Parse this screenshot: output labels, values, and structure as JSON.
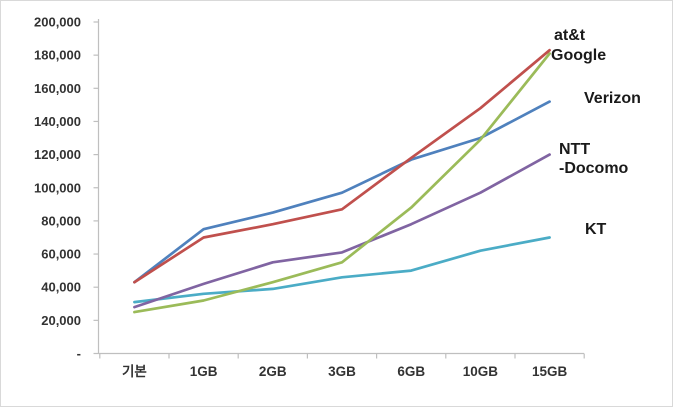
{
  "chart_data": {
    "type": "line",
    "title": "",
    "xlabel": "",
    "ylabel": "",
    "categories": [
      "기본",
      "1GB",
      "2GB",
      "3GB",
      "6GB",
      "10GB",
      "15GB"
    ],
    "series": [
      {
        "name": "at&t",
        "color": "#C0504D",
        "values": [
          43000,
          70000,
          78000,
          87000,
          118000,
          148000,
          183000
        ]
      },
      {
        "name": "Google",
        "color": "#9BBB59",
        "values": [
          25000,
          32000,
          43000,
          55000,
          88000,
          129000,
          181000
        ]
      },
      {
        "name": "Verizon",
        "color": "#4F81BD",
        "values": [
          43000,
          75000,
          85000,
          97000,
          117000,
          130000,
          152000
        ]
      },
      {
        "name": "NTT-Docomo",
        "color": "#8064A2",
        "values": [
          28000,
          42000,
          55000,
          61000,
          78000,
          97000,
          120000
        ]
      },
      {
        "name": "KT",
        "color": "#4BACC6",
        "values": [
          31000,
          36000,
          39000,
          46000,
          50000,
          62000,
          70000
        ]
      }
    ],
    "ylim": [
      0,
      200000
    ],
    "ytick_step": 20000,
    "ytick_labels": [
      "-",
      "20,000",
      "40,000",
      "60,000",
      "80,000",
      "100,000",
      "120,000",
      "140,000",
      "160,000",
      "180,000",
      "200,000"
    ],
    "grid": false,
    "legend_position": "inline-right-of-lines"
  },
  "annotations": {
    "att": "at&t",
    "google": "Google",
    "verizon": "Verizon",
    "ntt_line1": "NTT",
    "ntt_line2": "-Docomo",
    "kt": "KT"
  },
  "colors": {
    "axis": "#BFBFBF",
    "axis_text": "#333333",
    "label_text": "#1a1a1a",
    "background": "#ffffff"
  }
}
